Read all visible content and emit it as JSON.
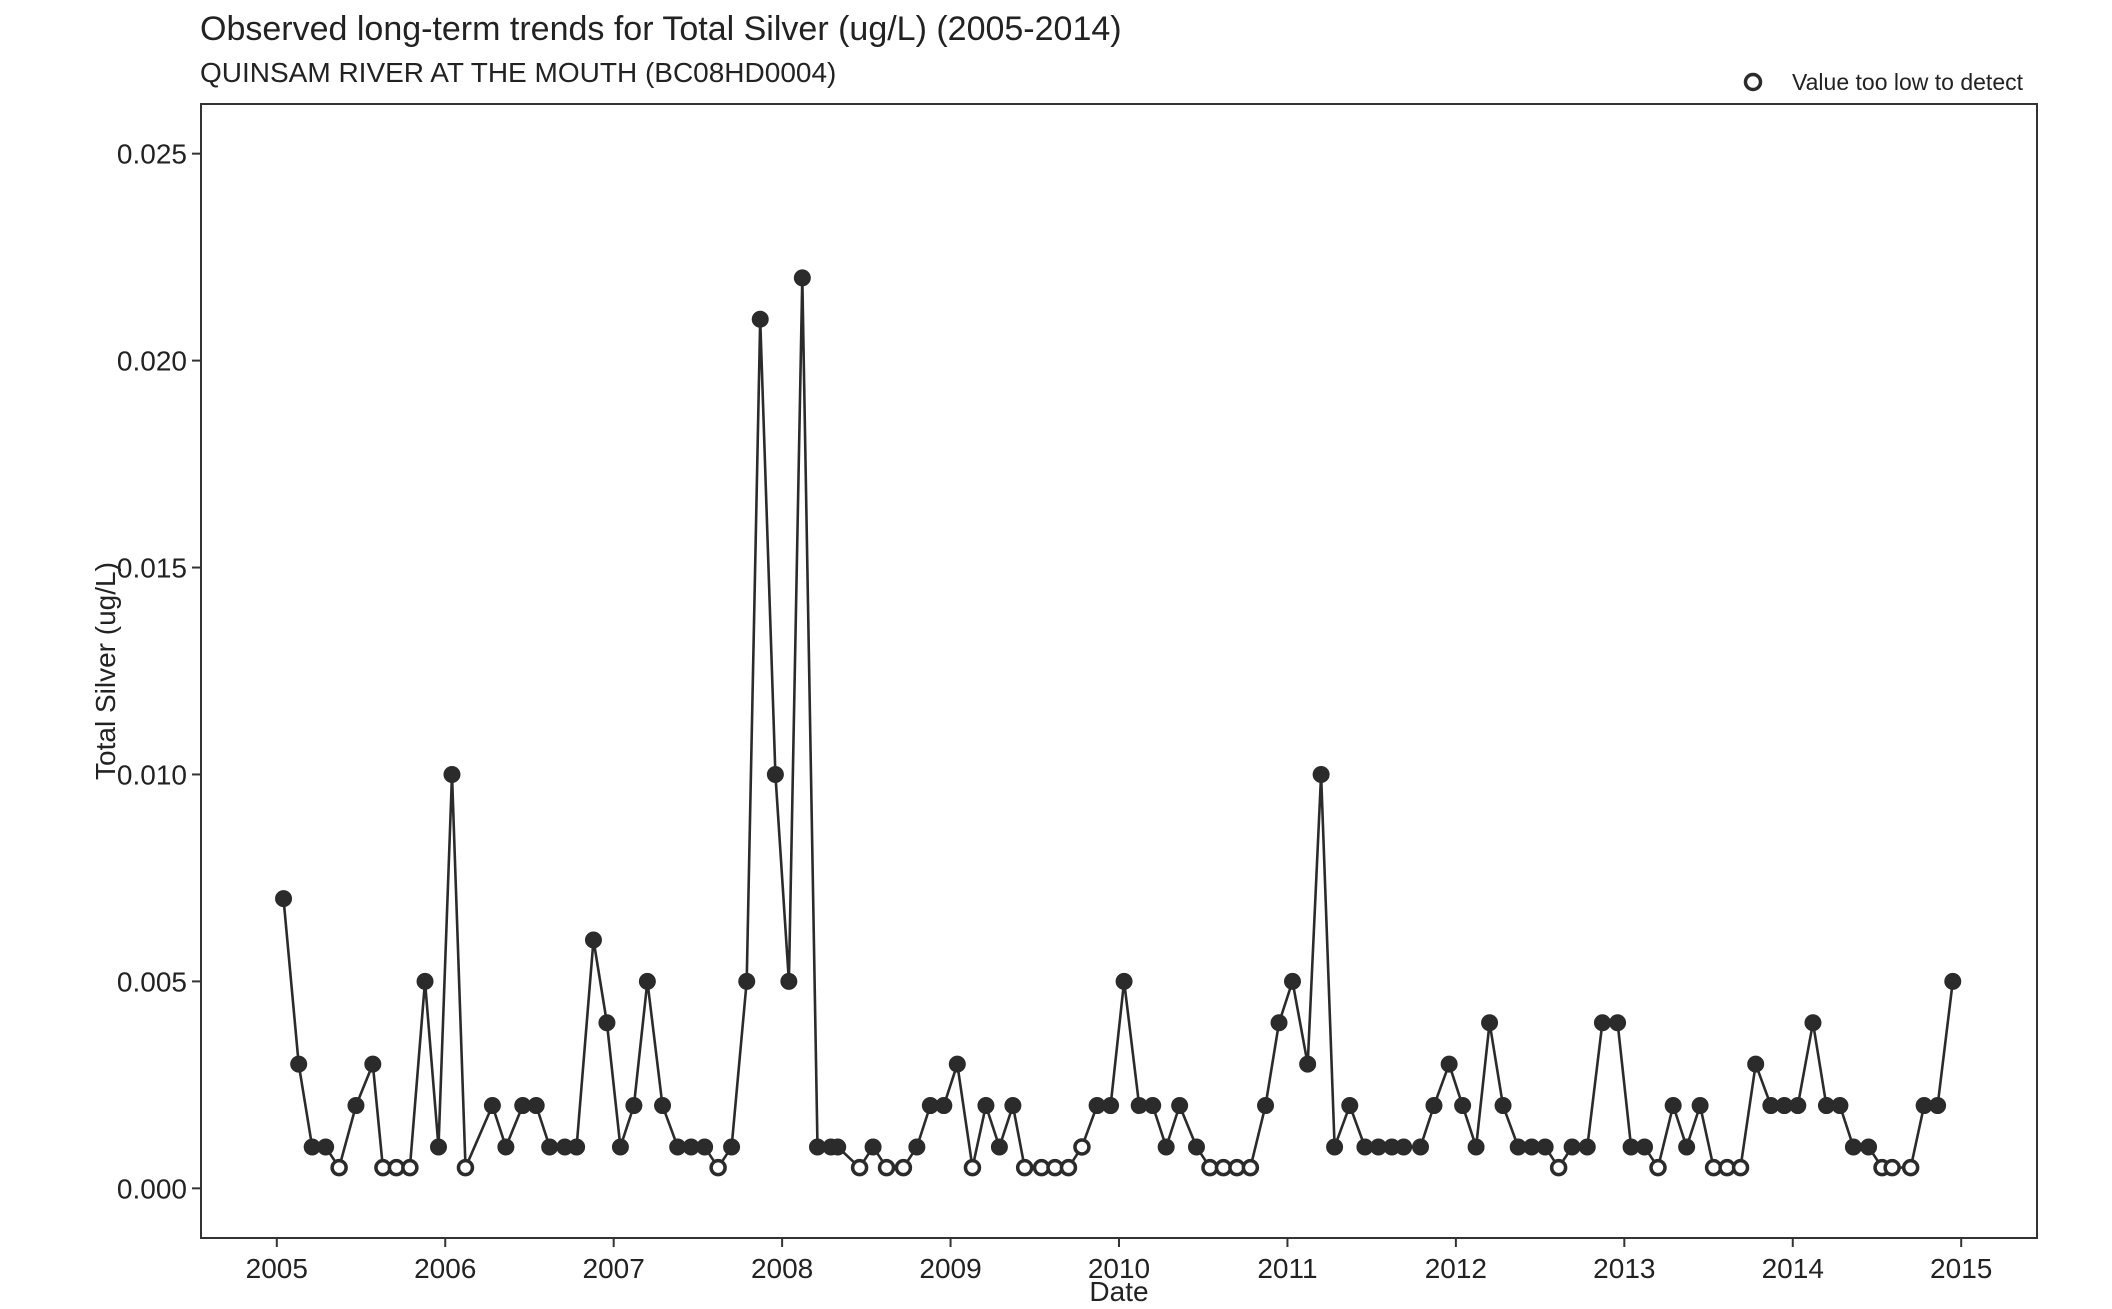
{
  "chart_data": {
    "type": "line",
    "title": "Observed long-term trends for Total Silver (ug/L) (2005-2014)",
    "subtitle": "QUINSAM RIVER AT THE MOUTH (BC08HD0004)",
    "xlabel": "Date",
    "ylabel": "Total Silver (ug/L)",
    "xlim": [
      2004.55,
      2015.45
    ],
    "ylim": [
      -0.0012,
      0.0262
    ],
    "x_ticks": [
      2005,
      2006,
      2007,
      2008,
      2009,
      2010,
      2011,
      2012,
      2013,
      2014,
      2015
    ],
    "y_ticks": [
      0.0,
      0.005,
      0.01,
      0.015,
      0.02,
      0.025
    ],
    "y_tick_labels": [
      "0.000",
      "0.005",
      "0.010",
      "0.015",
      "0.020",
      "0.025"
    ],
    "grid": false,
    "legend": {
      "position": "top-right",
      "entries": [
        {
          "marker": "open-circle",
          "label": "Value too low to detect"
        }
      ]
    },
    "color": "#2b2b2b",
    "x": [
      2005.04,
      2005.13,
      2005.21,
      2005.29,
      2005.37,
      2005.47,
      2005.57,
      2005.63,
      2005.71,
      2005.79,
      2005.88,
      2005.96,
      2006.04,
      2006.12,
      2006.28,
      2006.36,
      2006.46,
      2006.54,
      2006.62,
      2006.71,
      2006.78,
      2006.88,
      2006.96,
      2007.04,
      2007.12,
      2007.2,
      2007.29,
      2007.38,
      2007.46,
      2007.54,
      2007.62,
      2007.7,
      2007.79,
      2007.87,
      2007.96,
      2008.04,
      2008.12,
      2008.21,
      2008.29,
      2008.33,
      2008.46,
      2008.54,
      2008.62,
      2008.72,
      2008.8,
      2008.88,
      2008.96,
      2009.04,
      2009.13,
      2009.21,
      2009.29,
      2009.37,
      2009.44,
      2009.54,
      2009.62,
      2009.7,
      2009.78,
      2009.87,
      2009.95,
      2010.03,
      2010.12,
      2010.2,
      2010.28,
      2010.36,
      2010.46,
      2010.54,
      2010.62,
      2010.7,
      2010.78,
      2010.87,
      2010.95,
      2011.03,
      2011.12,
      2011.2,
      2011.28,
      2011.37,
      2011.46,
      2011.54,
      2011.62,
      2011.69,
      2011.79,
      2011.87,
      2011.96,
      2012.04,
      2012.12,
      2012.2,
      2012.28,
      2012.37,
      2012.45,
      2012.53,
      2012.61,
      2012.69,
      2012.78,
      2012.87,
      2012.96,
      2013.04,
      2013.12,
      2013.2,
      2013.29,
      2013.37,
      2013.45,
      2013.53,
      2013.61,
      2013.69,
      2013.78,
      2013.87,
      2013.95,
      2014.03,
      2014.12,
      2014.2,
      2014.28,
      2014.36,
      2014.45,
      2014.53,
      2014.59,
      2014.7,
      2014.78,
      2014.86,
      2014.95
    ],
    "y": [
      0.007,
      0.003,
      0.001,
      0.001,
      0.0005,
      0.002,
      0.003,
      0.0005,
      0.0005,
      0.0005,
      0.005,
      0.001,
      0.01,
      0.0005,
      0.002,
      0.001,
      0.002,
      0.002,
      0.001,
      0.001,
      0.001,
      0.006,
      0.004,
      0.001,
      0.002,
      0.005,
      0.002,
      0.001,
      0.001,
      0.001,
      0.0005,
      0.001,
      0.005,
      0.021,
      0.01,
      0.005,
      0.022,
      0.001,
      0.001,
      0.001,
      0.0005,
      0.001,
      0.0005,
      0.0005,
      0.001,
      0.002,
      0.002,
      0.003,
      0.0005,
      0.002,
      0.001,
      0.002,
      0.0005,
      0.0005,
      0.0005,
      0.0005,
      0.001,
      0.002,
      0.002,
      0.005,
      0.002,
      0.002,
      0.001,
      0.002,
      0.001,
      0.0005,
      0.0005,
      0.0005,
      0.0005,
      0.002,
      0.004,
      0.005,
      0.003,
      0.01,
      0.001,
      0.002,
      0.001,
      0.001,
      0.001,
      0.001,
      0.001,
      0.002,
      0.003,
      0.002,
      0.001,
      0.004,
      0.002,
      0.001,
      0.001,
      0.001,
      0.0005,
      0.001,
      0.001,
      0.004,
      0.004,
      0.001,
      0.001,
      0.0005,
      0.002,
      0.001,
      0.002,
      0.0005,
      0.0005,
      0.0005,
      0.003,
      0.002,
      0.002,
      0.002,
      0.004,
      0.002,
      0.002,
      0.001,
      0.001,
      0.0005,
      0.0005,
      0.0005,
      0.002,
      0.002,
      0.005
    ],
    "below_detection": [
      0,
      0,
      0,
      0,
      1,
      0,
      0,
      1,
      1,
      1,
      0,
      0,
      0,
      1,
      0,
      0,
      0,
      0,
      0,
      0,
      0,
      0,
      0,
      0,
      0,
      0,
      0,
      0,
      0,
      0,
      1,
      0,
      0,
      0,
      0,
      0,
      0,
      0,
      0,
      0,
      1,
      0,
      1,
      1,
      0,
      0,
      0,
      0,
      1,
      0,
      0,
      0,
      1,
      1,
      1,
      1,
      1,
      0,
      0,
      0,
      0,
      0,
      0,
      0,
      0,
      1,
      1,
      1,
      1,
      0,
      0,
      0,
      0,
      0,
      0,
      0,
      0,
      0,
      0,
      0,
      0,
      0,
      0,
      0,
      0,
      0,
      0,
      0,
      0,
      0,
      1,
      0,
      0,
      0,
      0,
      0,
      0,
      1,
      0,
      0,
      0,
      1,
      1,
      1,
      0,
      0,
      0,
      0,
      0,
      0,
      0,
      0,
      0,
      1,
      1,
      1,
      0,
      0,
      0
    ]
  }
}
